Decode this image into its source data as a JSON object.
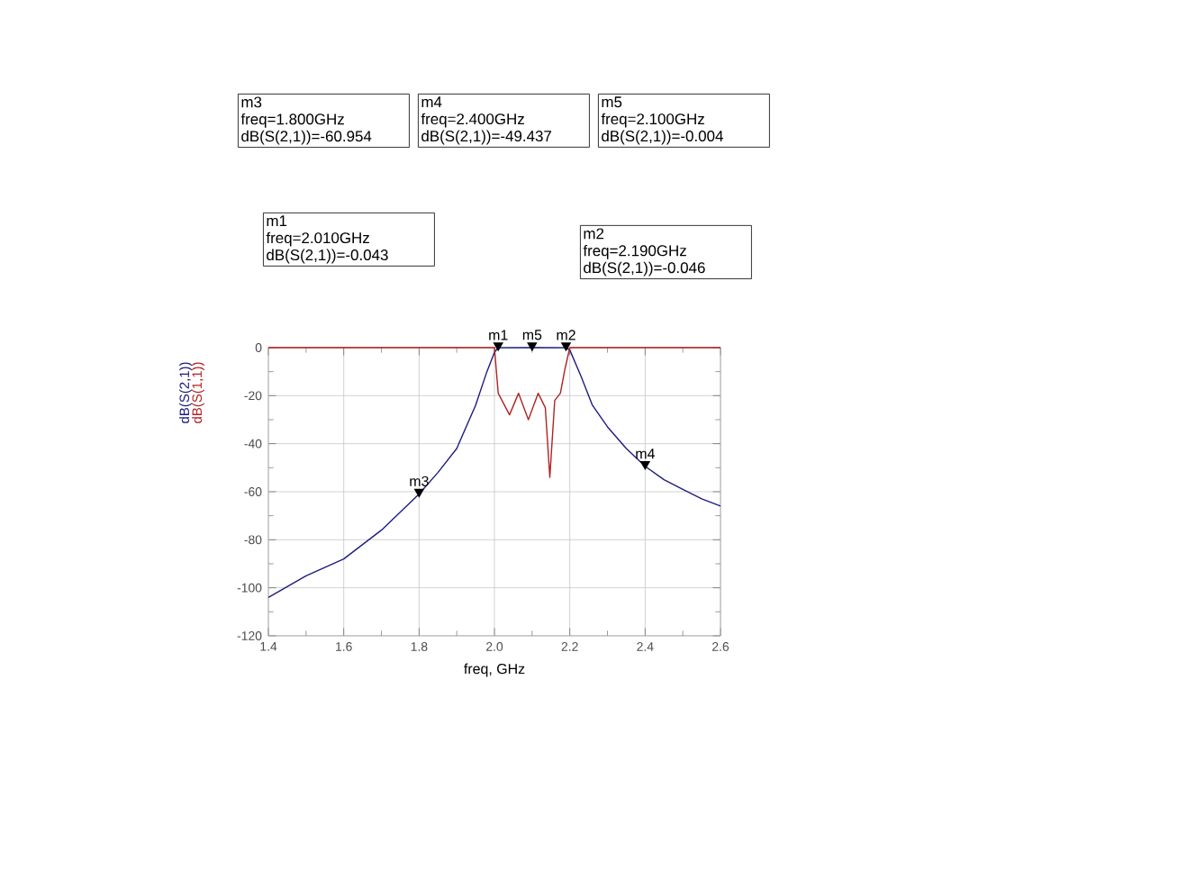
{
  "chart_data": {
    "type": "line",
    "xlabel": "freq, GHz",
    "xlim": [
      1.4,
      2.6
    ],
    "ylim": [
      -120,
      0
    ],
    "xticks": [
      1.4,
      1.6,
      1.8,
      {
        "value": 2,
        "label": "2.0"
      },
      2.2,
      2.4,
      2.6
    ],
    "yticks": [
      -120,
      -100,
      -80,
      -60,
      -40,
      -20,
      0
    ],
    "grid": true,
    "series": [
      {
        "name": "dB(S(2,1))",
        "color": "#1c1c80",
        "x": [
          1.4,
          1.5,
          1.6,
          1.7,
          1.8,
          1.85,
          1.9,
          1.95,
          1.98,
          2.0,
          2.01,
          2.1,
          2.19,
          2.2,
          2.23,
          2.26,
          2.3,
          2.35,
          2.4,
          2.45,
          2.5,
          2.55,
          2.6
        ],
        "values": [
          -104,
          -95,
          -88,
          -76,
          -60.954,
          -52,
          -42,
          -24,
          -10,
          -2,
          -0.043,
          -0.004,
          -0.046,
          -1,
          -12,
          -24,
          -33,
          -42,
          -49.437,
          -55,
          -59,
          -63,
          -66
        ]
      },
      {
        "name": "dB(S(1,1))",
        "color": "#b22222",
        "x": [
          1.4,
          2.0,
          2.01,
          2.02,
          2.04,
          2.064,
          2.09,
          2.116,
          2.135,
          2.147,
          2.16,
          2.175,
          2.187,
          2.2,
          2.6
        ],
        "values": [
          0,
          0,
          -19,
          -22,
          -28,
          -19,
          -30,
          -19,
          -25,
          -54,
          -22,
          -19,
          -9,
          0,
          0
        ]
      }
    ],
    "annotations": [
      "m3",
      "freq=1.800GHz",
      "dB(S(2,1))=-60.954",
      "m4",
      "freq=2.400GHz",
      "dB(S(2,1))=-49.437",
      "m5",
      "freq=2.100GHz",
      "dB(S(2,1))=-0.004",
      "m1",
      "freq=2.010GHz",
      "dB(S(2,1))=-0.043",
      "m2",
      "freq=2.190GHz",
      "dB(S(2,1))=-0.046",
      {
        "text": "m3",
        "x": 1.8,
        "y": -60.954
      },
      {
        "text": "m4",
        "x": 2.4,
        "y": -49.437
      },
      {
        "text": "m5",
        "x": 2.1,
        "y": -0.004
      },
      {
        "text": "m1",
        "x": 2.01,
        "y": -0.043
      },
      {
        "text": "m2",
        "x": 2.19,
        "y": -0.046
      }
    ]
  }
}
